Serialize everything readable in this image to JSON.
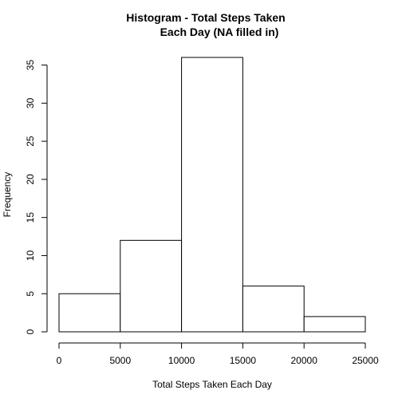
{
  "chart_data": {
    "type": "bar",
    "title_line1": "Histogram - Total Steps Taken",
    "title_line2": "Each Day (NA filled in)",
    "xlabel": "Total Steps Taken Each Day",
    "ylabel": "Frequency",
    "bins": [
      {
        "from": 0,
        "to": 5000,
        "count": 5
      },
      {
        "from": 5000,
        "to": 10000,
        "count": 12
      },
      {
        "from": 10000,
        "to": 15000,
        "count": 36
      },
      {
        "from": 15000,
        "to": 20000,
        "count": 6
      },
      {
        "from": 20000,
        "to": 25000,
        "count": 2
      }
    ],
    "x_ticks": [
      0,
      5000,
      10000,
      15000,
      20000,
      25000
    ],
    "y_ticks": [
      0,
      5,
      10,
      15,
      20,
      25,
      30,
      35
    ],
    "xlim": [
      0,
      25000
    ],
    "ylim": [
      0,
      36
    ],
    "grid": false,
    "legend": "none"
  }
}
